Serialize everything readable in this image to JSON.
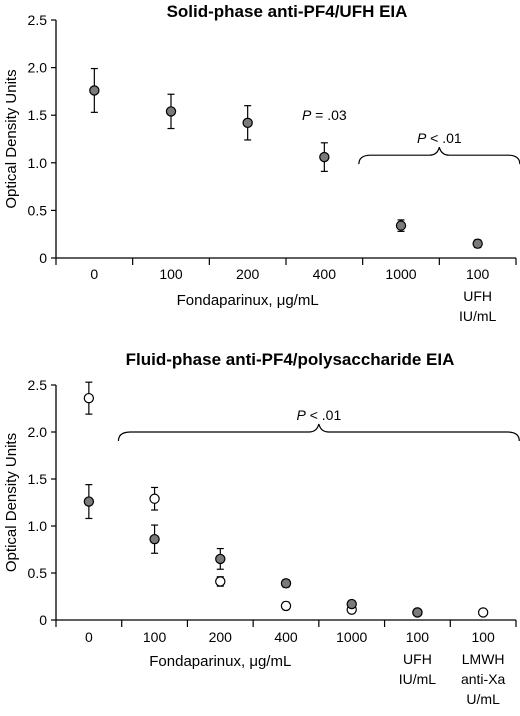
{
  "chart_data": [
    {
      "type": "scatter",
      "title": "Solid-phase anti-PF4/UFH EIA",
      "ylabel": "Optical Density Units",
      "xlabel": "Fondaparinux, μg/mL",
      "categories": [
        "0",
        "100",
        "200",
        "400",
        "1000",
        "100"
      ],
      "category_sublabels": [
        "",
        "",
        "",
        "",
        "",
        "UFH\nIU/mL"
      ],
      "ylim": [
        0,
        2.5
      ],
      "yticks": [
        "0",
        "0.5",
        "1.0",
        "1.5",
        "2.0",
        "2.5"
      ],
      "series": [
        {
          "style": "filled",
          "values": [
            1.76,
            1.54,
            1.42,
            1.06,
            0.34,
            0.15
          ],
          "err": [
            0.23,
            0.18,
            0.18,
            0.15,
            0.06,
            0.04
          ]
        }
      ],
      "annotations": [
        {
          "text_italic": "P",
          "text_rest": " = .03",
          "category_index": 3,
          "y": 1.5
        },
        {
          "text_italic": "P",
          "text_rest": " < .01",
          "bracket_from": 4,
          "bracket_to": 5,
          "y": 1.08
        }
      ]
    },
    {
      "type": "scatter",
      "title": "Fluid-phase anti-PF4/polysaccharide EIA",
      "ylabel": "Optical Density Units",
      "xlabel": "Fondaparinux, μg/mL",
      "categories": [
        "0",
        "100",
        "200",
        "400",
        "1000",
        "100",
        "100"
      ],
      "category_sublabels": [
        "",
        "",
        "",
        "",
        "",
        "UFH\nIU/mL",
        "LMWH\nanti-Xa\nU/mL"
      ],
      "ylim": [
        0,
        2.5
      ],
      "yticks": [
        "0",
        "0.5",
        "1.0",
        "1.5",
        "2.0",
        "2.5"
      ],
      "series": [
        {
          "style": "open",
          "values": [
            2.36,
            1.29,
            0.41,
            0.15,
            0.11,
            0.08,
            0.08
          ],
          "err": [
            0.17,
            0.12,
            0.05,
            0.04,
            0.03,
            0.02,
            0.03
          ]
        },
        {
          "style": "filled",
          "values": [
            1.26,
            0.86,
            0.65,
            0.39,
            0.17,
            0.08,
            null
          ],
          "err": [
            0.18,
            0.15,
            0.11,
            0.04,
            0.03,
            0.02,
            null
          ]
        }
      ],
      "annotations": [
        {
          "text_italic": "P",
          "text_rest": " < .01",
          "bracket_from": 1,
          "bracket_to": 6,
          "y": 2.0
        }
      ]
    }
  ]
}
